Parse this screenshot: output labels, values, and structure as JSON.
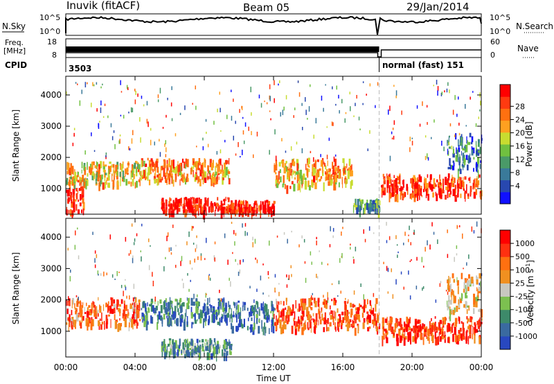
{
  "header": {
    "title": "Inuvik (fitACF)",
    "beam": "Beam 05",
    "date": "29/Jan/2014"
  },
  "top_panels": {
    "nsky_label": "N.Sky",
    "nsky_ticks": [
      "10^5",
      "10^0"
    ],
    "nsearch_label": "N.Search",
    "nsearch_ticks": [
      "10^5",
      "10^0"
    ],
    "freq_label_line1": "Freq.",
    "freq_label_line2": "[MHz]",
    "freq_ticks": [
      "18",
      "8"
    ],
    "nave_label": "Nave",
    "nave_ticks": [
      "60",
      "0"
    ],
    "cpid_label": "CPID",
    "cpid_left": "3503",
    "cpid_right": "normal (fast) 151",
    "mode_switch_hour": 18.1
  },
  "chart_data": [
    {
      "type": "heatmap",
      "name": "power",
      "xlabel": "",
      "ylabel": "Slant Range [km]",
      "xlim": [
        0,
        24
      ],
      "ylim": [
        180,
        4600
      ],
      "yticks": [
        "1000",
        "2000",
        "3000",
        "4000"
      ],
      "colorbar": {
        "label": "Power [dB]",
        "ticks": [
          "4",
          "8",
          "12",
          "16",
          "20",
          "24",
          "28"
        ],
        "colors": [
          "#1010ff",
          "#2848b0",
          "#3a7a9a",
          "#4a9a68",
          "#70c040",
          "#c8dc30",
          "#ffa020",
          "#ff7010",
          "#ff3a10",
          "#ff0000"
        ]
      },
      "bands": [
        {
          "x": [
            0.0,
            4.3
          ],
          "y": [
            1100,
            1800
          ],
          "level": 0.6
        },
        {
          "x": [
            4.3,
            9.5
          ],
          "y": [
            1200,
            1900
          ],
          "level": 0.7
        },
        {
          "x": [
            5.5,
            9.5
          ],
          "y": [
            200,
            650
          ],
          "level": 0.95
        },
        {
          "x": [
            0.0,
            1.0
          ],
          "y": [
            200,
            1000
          ],
          "level": 0.9
        },
        {
          "x": [
            9.5,
            12.0
          ],
          "y": [
            200,
            550
          ],
          "level": 0.9
        },
        {
          "x": [
            12.0,
            14.2
          ],
          "y": [
            1000,
            1900
          ],
          "level": 0.65
        },
        {
          "x": [
            14.2,
            16.5
          ],
          "y": [
            1100,
            1900
          ],
          "level": 0.7
        },
        {
          "x": [
            16.5,
            18.1
          ],
          "y": [
            250,
            600
          ],
          "level": 0.35
        },
        {
          "x": [
            18.2,
            24.0
          ],
          "y": [
            700,
            1400
          ],
          "level": 0.85
        },
        {
          "x": [
            22.0,
            24.0
          ],
          "y": [
            1500,
            2700
          ],
          "level": 0.25
        }
      ]
    },
    {
      "type": "heatmap",
      "name": "velocity",
      "xlabel": "Time UT",
      "ylabel": "Slant Range [km]",
      "xlim": [
        0,
        24
      ],
      "ylim": [
        180,
        4600
      ],
      "xticks": [
        "00:00",
        "04:00",
        "08:00",
        "12:00",
        "16:00",
        "20:00",
        "00:00"
      ],
      "yticks": [
        "1000",
        "2000",
        "3000",
        "4000"
      ],
      "colorbar": {
        "label": "Velocity [m s^-1]",
        "ticks": [
          "1000",
          "500",
          "100",
          "25",
          "-25",
          "-100",
          "-500",
          "-1000"
        ],
        "colors": [
          "#2848c0",
          "#3a6aa0",
          "#3d8a6a",
          "#7cc050",
          "#c8c8c0",
          "#f09020",
          "#ff7010",
          "#ff3010",
          "#ff0000"
        ]
      },
      "bands": [
        {
          "x": [
            0.0,
            4.3
          ],
          "y": [
            1100,
            2000
          ],
          "level": 0.75
        },
        {
          "x": [
            4.3,
            9.5
          ],
          "y": [
            1200,
            2000
          ],
          "level": 0.2
        },
        {
          "x": [
            5.5,
            9.5
          ],
          "y": [
            200,
            700
          ],
          "level": 0.3
        },
        {
          "x": [
            9.5,
            12.0
          ],
          "y": [
            1000,
            1900
          ],
          "level": 0.15
        },
        {
          "x": [
            12.0,
            18.1
          ],
          "y": [
            1000,
            2000
          ],
          "level": 0.8
        },
        {
          "x": [
            18.2,
            24.0
          ],
          "y": [
            700,
            1400
          ],
          "level": 0.82
        },
        {
          "x": [
            22.0,
            24.0
          ],
          "y": [
            1500,
            2800
          ],
          "level": 0.55
        }
      ]
    }
  ]
}
